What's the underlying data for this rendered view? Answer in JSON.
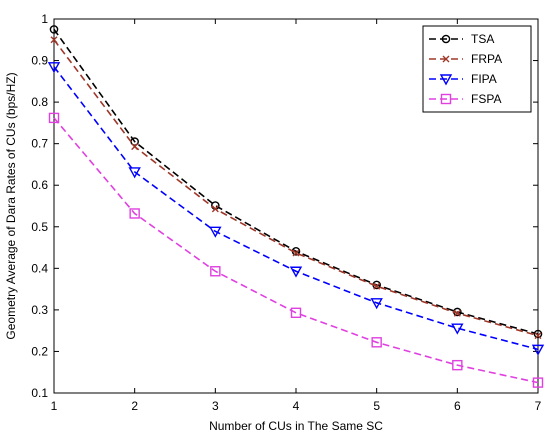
{
  "chart_data": {
    "type": "line",
    "xlabel": "Number of CUs in The Same SC",
    "ylabel": "Geometry Average of Dara Rates of CUs (bps/HZ)",
    "xlim": [
      1,
      7
    ],
    "ylim": [
      0.1,
      1.0
    ],
    "x": [
      1,
      2,
      3,
      4,
      5,
      6,
      7
    ],
    "x_ticks": [
      "1",
      "2",
      "3",
      "4",
      "5",
      "6",
      "7"
    ],
    "y_ticks": [
      "0.1",
      "0.2",
      "0.3",
      "0.4",
      "0.5",
      "0.6",
      "0.7",
      "0.8",
      "0.9",
      "1"
    ],
    "grid": false,
    "legend_position": "top-right",
    "series": [
      {
        "name": "TSA",
        "values": [
          0.975,
          0.705,
          0.551,
          0.441,
          0.36,
          0.295,
          0.242
        ],
        "color": "#000000",
        "marker": "circle",
        "line_style": "dashed"
      },
      {
        "name": "FRPA",
        "values": [
          0.95,
          0.693,
          0.543,
          0.437,
          0.357,
          0.292,
          0.238
        ],
        "color": "#a0382a",
        "marker": "x",
        "line_style": "dashed"
      },
      {
        "name": "FIPA",
        "values": [
          0.885,
          0.632,
          0.489,
          0.393,
          0.317,
          0.256,
          0.205
        ],
        "color": "#0000ff",
        "marker": "triangle-down",
        "line_style": "dashed"
      },
      {
        "name": "FSPA",
        "values": [
          0.762,
          0.532,
          0.393,
          0.293,
          0.222,
          0.167,
          0.125
        ],
        "color": "#e040e0",
        "marker": "square",
        "line_style": "dashed"
      }
    ]
  }
}
